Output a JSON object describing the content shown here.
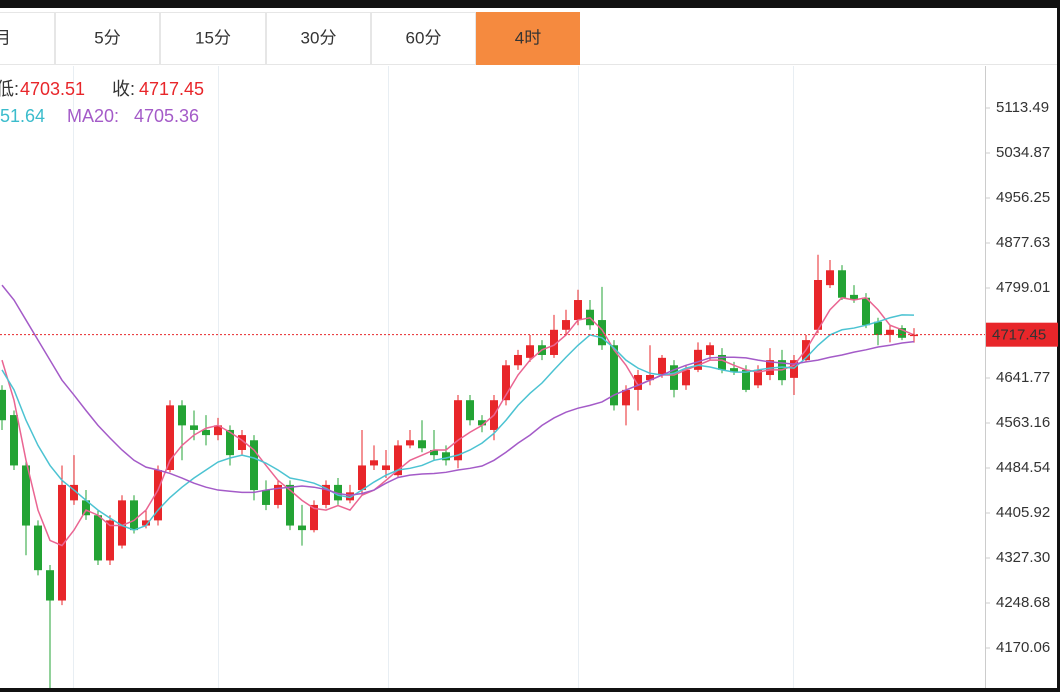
{
  "chart_data": {
    "type": "candlestick",
    "tabs": [
      "月",
      "5分",
      "15分",
      "30分",
      "60分",
      "4时"
    ],
    "active_tab": 5,
    "legend": {
      "low_label": "低:",
      "low": 4703.51,
      "close_label": "收:",
      "close": 4717.45,
      "ma10_text": "51.64",
      "ma20_label": "MA20:",
      "ma20": 4705.36
    },
    "up_color": "#e8262a",
    "down_color": "#23a334",
    "open": [
      4621,
      4577,
      4489,
      4384,
      4306,
      4253,
      4428,
      4428,
      4402,
      4323,
      4349,
      4428,
      4384,
      4393,
      4481,
      4594,
      4559,
      4551,
      4542,
      4551,
      4516,
      4533,
      4446,
      4420,
      4455,
      4384,
      4376,
      4420,
      4455,
      4428,
      4446,
      4489,
      4481,
      4472,
      4524,
      4533,
      4516,
      4512,
      4498,
      4603,
      4568,
      4551,
      4603,
      4664,
      4677,
      4699,
      4682,
      4726,
      4743,
      4761,
      4743,
      4699,
      4594,
      4621,
      4638,
      4647,
      4664,
      4629,
      4656,
      4682,
      4682,
      4659,
      4656,
      4629,
      4647,
      4673,
      4642,
      4673,
      4726,
      4804,
      4830,
      4787,
      4782,
      4740,
      4717,
      4729,
      4715
    ],
    "high": [
      4629,
      4585,
      4498,
      4393,
      4315,
      4489,
      4507,
      4446,
      4411,
      4402,
      4437,
      4437,
      4411,
      4489,
      4603,
      4603,
      4585,
      4577,
      4572,
      4559,
      4551,
      4542,
      4463,
      4463,
      4463,
      4420,
      4428,
      4463,
      4467,
      4455,
      4551,
      4524,
      4516,
      4533,
      4551,
      4568,
      4551,
      4524,
      4612,
      4612,
      4577,
      4612,
      4673,
      4691,
      4717,
      4708,
      4752,
      4761,
      4796,
      4778,
      4801,
      4708,
      4629,
      4656,
      4699,
      4682,
      4673,
      4664,
      4704,
      4704,
      4694,
      4670,
      4664,
      4664,
      4694,
      4691,
      4682,
      4717,
      4857,
      4848,
      4839,
      4804,
      4790,
      4747,
      4734,
      4734,
      4729
    ],
    "low": [
      4551,
      4481,
      4332,
      4297,
      4096,
      4245,
      4420,
      4394,
      4315,
      4315,
      4344,
      4370,
      4379,
      4384,
      4477,
      4498,
      4533,
      4524,
      4533,
      4489,
      4507,
      4428,
      4411,
      4414,
      4376,
      4349,
      4372,
      4414,
      4420,
      4423,
      4437,
      4481,
      4467,
      4467,
      4519,
      4512,
      4498,
      4489,
      4484,
      4559,
      4547,
      4533,
      4594,
      4656,
      4670,
      4673,
      4677,
      4717,
      4734,
      4726,
      4691,
      4585,
      4559,
      4585,
      4629,
      4642,
      4608,
      4621,
      4652,
      4673,
      4650,
      4647,
      4617,
      4624,
      4638,
      4629,
      4612,
      4670,
      4720,
      4799,
      4778,
      4773,
      4729,
      4699,
      4704,
      4708,
      4703.51
    ],
    "close": [
      4568,
      4489,
      4384,
      4306,
      4253,
      4455,
      4455,
      4402,
      4323,
      4393,
      4428,
      4376,
      4393,
      4481,
      4594,
      4559,
      4551,
      4542,
      4559,
      4507,
      4542,
      4446,
      4420,
      4455,
      4384,
      4376,
      4420,
      4455,
      4428,
      4442,
      4489,
      4498,
      4489,
      4524,
      4533,
      4519,
      4507,
      4498,
      4603,
      4568,
      4559,
      4603,
      4664,
      4682,
      4699,
      4682,
      4726,
      4743,
      4778,
      4734,
      4699,
      4594,
      4621,
      4647,
      4647,
      4677,
      4621,
      4656,
      4691,
      4699,
      4656,
      4652,
      4621,
      4656,
      4673,
      4638,
      4673,
      4708,
      4813,
      4830,
      4782,
      4778,
      4734,
      4717,
      4726,
      4712,
      4717.45
    ],
    "series": [
      {
        "color": "#ea6592",
        "values": [
          4673,
          4603,
          4498,
          4411,
          4358,
          4349,
          4376,
          4411,
          4402,
          4384,
          4384,
          4393,
          4411,
          4446,
          4498,
          4524,
          4542,
          4554,
          4559,
          4547,
          4533,
          4516,
          4489,
          4463,
          4446,
          4428,
          4414,
          4411,
          4419,
          4411,
          4437,
          4446,
          4463,
          4481,
          4498,
          4507,
          4516,
          4516,
          4533,
          4547,
          4559,
          4577,
          4612,
          4647,
          4673,
          4691,
          4699,
          4717,
          4743,
          4747,
          4726,
          4691,
          4664,
          4629,
          4638,
          4647,
          4647,
          4656,
          4664,
          4673,
          4673,
          4664,
          4656,
          4652,
          4656,
          4656,
          4664,
          4691,
          4726,
          4761,
          4782,
          4778,
          4782,
          4761,
          4734,
          4726,
          4717
        ]
      },
      {
        "color": "#4cc3d2",
        "values": [
          4656,
          4621,
          4568,
          4524,
          4489,
          4463,
          4446,
          4428,
          4411,
          4397,
          4384,
          4376,
          4384,
          4411,
          4433,
          4451,
          4467,
          4481,
          4495,
          4502,
          4507,
          4502,
          4493,
          4481,
          4467,
          4463,
          4458,
          4449,
          4437,
          4433,
          4446,
          4460,
          4472,
          4481,
          4484,
          4489,
          4498,
          4502,
          4507,
          4516,
          4528,
          4545,
          4568,
          4594,
          4615,
          4633,
          4656,
          4678,
          4699,
          4717,
          4712,
          4694,
          4673,
          4659,
          4650,
          4647,
          4650,
          4659,
          4664,
          4661,
          4656,
          4652,
          4652,
          4656,
          4659,
          4661,
          4659,
          4677,
          4699,
          4717,
          4726,
          4729,
          4734,
          4740,
          4747,
          4752,
          4751.64
        ]
      },
      {
        "name": "MA20",
        "color": "#a45bc8",
        "values": [
          4804,
          4778,
          4743,
          4708,
          4673,
          4638,
          4612,
          4585,
          4559,
          4537,
          4516,
          4498,
          4486,
          4481,
          4475,
          4467,
          4458,
          4451,
          4446,
          4444,
          4442,
          4442,
          4446,
          4449,
          4451,
          4453,
          4451,
          4447,
          4440,
          4437,
          4440,
          4446,
          4458,
          4468,
          4472,
          4474,
          4475,
          4477,
          4481,
          4484,
          4488,
          4498,
          4512,
          4528,
          4542,
          4559,
          4572,
          4582,
          4589,
          4594,
          4600,
          4612,
          4621,
          4629,
          4638,
          4647,
          4656,
          4664,
          4670,
          4677,
          4678,
          4678,
          4677,
          4673,
          4670,
          4668,
          4666,
          4670,
          4673,
          4678,
          4682,
          4687,
          4691,
          4696,
          4699,
          4703,
          4705.36
        ]
      }
    ],
    "current_price": 4717.45,
    "current_price_color": "#e8262a",
    "ylim": [
      4100.17,
      5186.87
    ],
    "yticks": [
      5113.49,
      5034.87,
      4956.25,
      4877.63,
      4799.01,
      4641.77,
      4563.16,
      4484.54,
      4405.92,
      {
        "value": 4327.3,
        "label": "4327.30"
      },
      4248.68,
      4170.06
    ]
  }
}
